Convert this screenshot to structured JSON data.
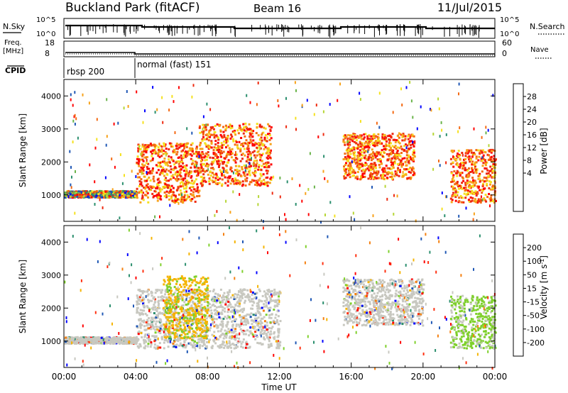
{
  "header": {
    "station": "Buckland Park (fitACF)",
    "beam": "Beam 16",
    "date": "11/Jul/2015"
  },
  "status_panels": {
    "nsky_label": "N.Sky",
    "nsky_ticks": [
      "10^5",
      "10^0"
    ],
    "nsearch_label": "N.Search",
    "nsearch_ticks": [
      "10^5",
      "10^0"
    ],
    "freq_label_line1": "Freq.",
    "freq_label_line2": "[MHz]",
    "freq_ticks": [
      "18",
      "8"
    ],
    "nave_label": "Nave",
    "nave_ticks": [
      "60",
      "0"
    ],
    "cpid_label": "CPID",
    "cpid_segments": [
      {
        "label": "rbsp 200",
        "start": "00:00",
        "end": "04:00"
      },
      {
        "label": "normal (fast) 151",
        "start": "04:00",
        "end": "24:00"
      }
    ]
  },
  "chart_data": [
    {
      "type": "heatmap",
      "title": "",
      "ylabel": "Slant Range [km]",
      "xlabel": "",
      "xlim": [
        0,
        24
      ],
      "ylim": [
        200,
        4500
      ],
      "yticks": [
        "1000",
        "2000",
        "3000",
        "4000"
      ],
      "colorbar": {
        "label": "Power [dB]",
        "ticks": [
          "28",
          "24",
          "20",
          "16",
          "12",
          "8",
          "4"
        ],
        "colors": [
          "#0000ff",
          "#1f57b5",
          "#2b8f6e",
          "#6ab44a",
          "#b6d636",
          "#f5e11e",
          "#f7a21a",
          "#f46a14",
          "#ee2a10",
          "#ff0000"
        ]
      },
      "echo_regions": [
        {
          "t_start": 0.0,
          "t_end": 4.0,
          "r_min": 950,
          "r_max": 1150,
          "level": "mixed"
        },
        {
          "t_start": 4.0,
          "t_end": 7.5,
          "r_min": 800,
          "r_max": 2600,
          "level": "high"
        },
        {
          "t_start": 7.5,
          "t_end": 11.5,
          "r_min": 1300,
          "r_max": 3200,
          "level": "high"
        },
        {
          "t_start": 15.5,
          "t_end": 19.5,
          "r_min": 1500,
          "r_max": 2900,
          "level": "high"
        },
        {
          "t_start": 21.5,
          "t_end": 24.0,
          "r_min": 800,
          "r_max": 2400,
          "level": "high"
        }
      ]
    },
    {
      "type": "heatmap",
      "title": "",
      "ylabel": "Slant Range [km]",
      "xlabel": "Time UT",
      "xlim": [
        0,
        24
      ],
      "ylim": [
        200,
        4500
      ],
      "xticks": [
        "00:00",
        "04:00",
        "08:00",
        "12:00",
        "16:00",
        "20:00",
        "00:00"
      ],
      "yticks": [
        "1000",
        "2000",
        "3000",
        "4000"
      ],
      "colorbar": {
        "label": "Velocity [m s",
        "label_superscript": "-1",
        "label_close": "]",
        "ticks": [
          "200",
          "100",
          "50",
          "15",
          "-15",
          "-50",
          "-100",
          "-200"
        ],
        "colors": [
          "#0000ff",
          "#1f57b5",
          "#2b8f6e",
          "#7fd02c",
          "#c8c8c0",
          "#f5b400",
          "#f48010",
          "#ff3010",
          "#ff0000"
        ]
      },
      "echo_regions": [
        {
          "t_start": 0.0,
          "t_end": 4.0,
          "r_min": 950,
          "r_max": 1150,
          "level": "gray"
        },
        {
          "t_start": 4.0,
          "t_end": 12.0,
          "r_min": 800,
          "r_max": 2600,
          "level": "gray"
        },
        {
          "t_start": 5.5,
          "t_end": 8.0,
          "r_min": 1100,
          "r_max": 3000,
          "level": "orange"
        },
        {
          "t_start": 15.5,
          "t_end": 20.0,
          "r_min": 1500,
          "r_max": 2900,
          "level": "gray"
        },
        {
          "t_start": 21.5,
          "t_end": 24.0,
          "r_min": 800,
          "r_max": 2400,
          "level": "green"
        }
      ]
    }
  ]
}
